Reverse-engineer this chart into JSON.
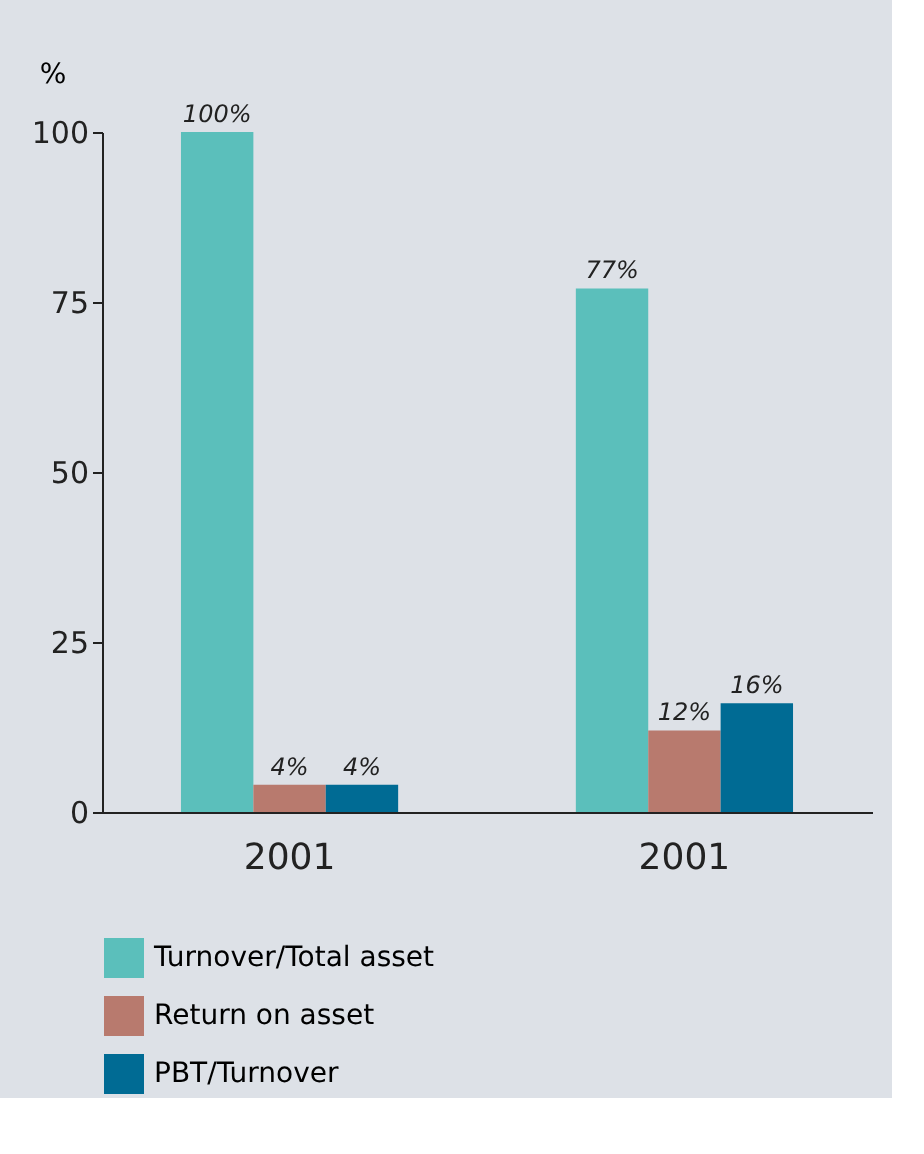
{
  "chart_data": {
    "type": "bar",
    "categories": [
      "2001",
      "2001"
    ],
    "ylabel": "%",
    "ylim": [
      0,
      100
    ],
    "yticks": [
      0,
      25,
      50,
      75,
      100
    ],
    "grid": false,
    "legend": "bottom left",
    "series": [
      {
        "name": "Turnover/Total asset",
        "color": "#5bbfbb",
        "values": [
          100,
          77
        ],
        "value_labels": [
          "100%",
          "77%"
        ]
      },
      {
        "name": "Return on asset",
        "color": "#b87a6e",
        "values": [
          4,
          12
        ],
        "value_labels": [
          "4%",
          "12%"
        ]
      },
      {
        "name": "PBT/Turnover",
        "color": "#006b94",
        "values": [
          4,
          16
        ],
        "value_labels": [
          "4%",
          "16%"
        ]
      }
    ]
  }
}
